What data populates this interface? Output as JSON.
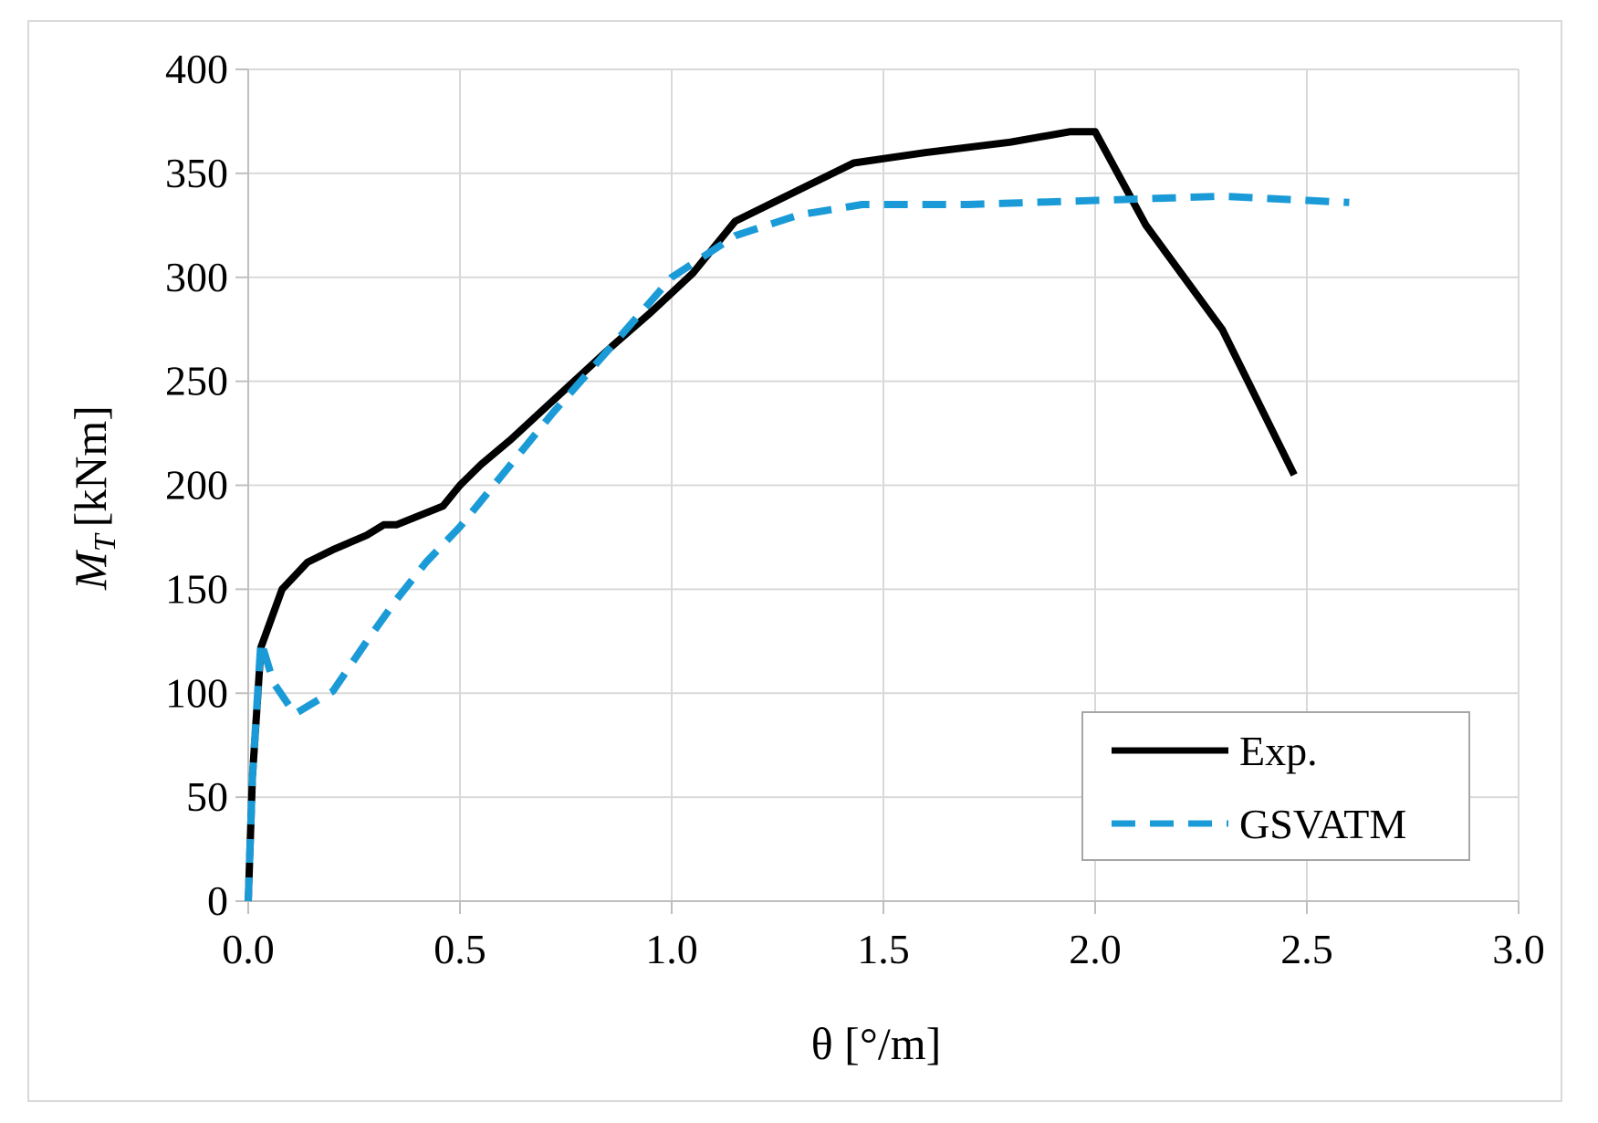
{
  "chart_data": {
    "type": "line",
    "title": "",
    "xlabel": "θ [°/m]",
    "ylabel": "M_T [kNm]",
    "ylabel_main": "M",
    "ylabel_sub": "T",
    "ylabel_unit": "[kNm]",
    "xlim": [
      0,
      3.0
    ],
    "ylim": [
      0,
      400
    ],
    "x_ticks": [
      "0.0",
      "0.5",
      "1.0",
      "1.5",
      "2.0",
      "2.5",
      "3.0"
    ],
    "y_ticks": [
      "0",
      "50",
      "100",
      "150",
      "200",
      "250",
      "300",
      "350",
      "400"
    ],
    "grid": true,
    "legend_position": "bottom-right",
    "series": [
      {
        "name": "Exp.",
        "color": "#000000",
        "style": "solid",
        "x": [
          0.0,
          0.01,
          0.03,
          0.08,
          0.14,
          0.2,
          0.28,
          0.32,
          0.35,
          0.46,
          0.5,
          0.55,
          0.62,
          0.7,
          0.78,
          0.86,
          0.95,
          1.05,
          1.15,
          1.25,
          1.43,
          1.6,
          1.8,
          1.94,
          2.0,
          2.12,
          2.3,
          2.47
        ],
        "y": [
          0,
          60,
          122,
          150,
          163,
          169,
          176,
          181,
          181,
          190,
          200,
          210,
          222,
          237,
          252,
          267,
          283,
          302,
          327,
          337,
          355,
          360,
          365,
          370,
          370,
          325,
          275,
          205
        ]
      },
      {
        "name": "GSVATM",
        "color": "#1a9bd7",
        "style": "dashed",
        "x": [
          0.0,
          0.01,
          0.03,
          0.06,
          0.11,
          0.2,
          0.28,
          0.35,
          0.42,
          0.5,
          0.6,
          0.72,
          0.85,
          1.0,
          1.15,
          1.3,
          1.45,
          1.7,
          2.0,
          2.3,
          2.6
        ],
        "y": [
          0,
          60,
          125,
          105,
          90,
          101,
          125,
          145,
          163,
          180,
          205,
          235,
          265,
          300,
          320,
          330,
          335,
          335,
          337,
          339,
          336
        ]
      }
    ]
  }
}
